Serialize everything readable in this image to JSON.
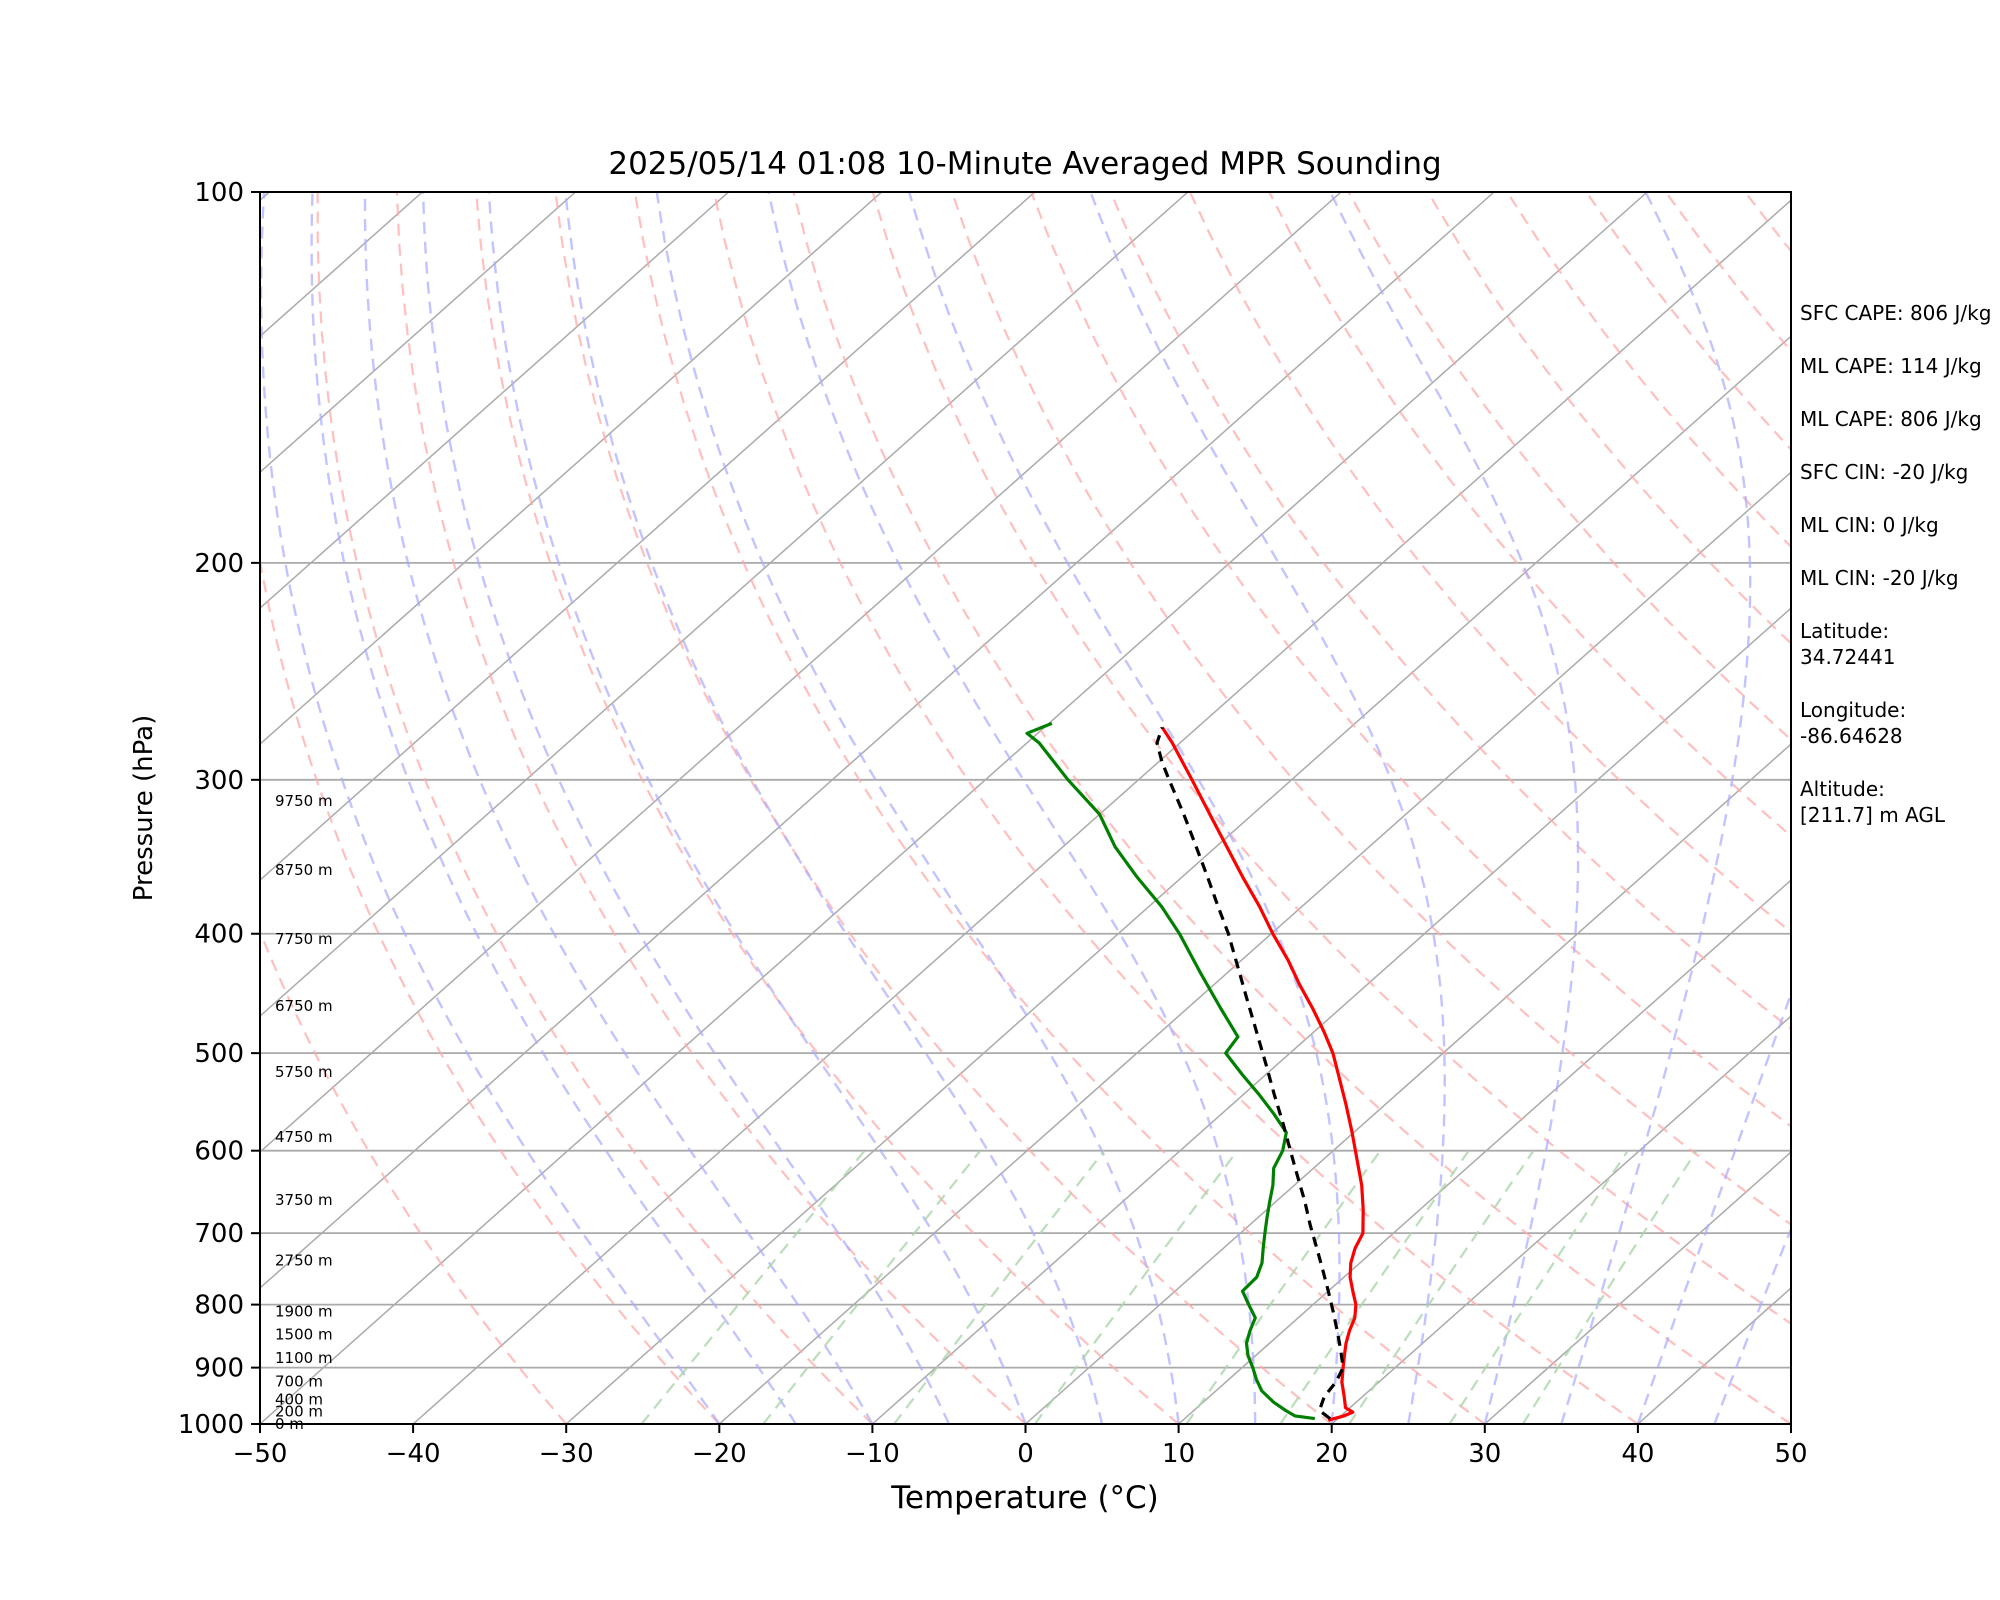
{
  "chart_data": {
    "type": "line",
    "title": "2025/05/14 01:08 10-Minute Averaged MPR Sounding",
    "xlabel": "Temperature (°C)",
    "ylabel": "Pressure (hPa)",
    "xlim": [
      -50,
      50
    ],
    "ylim": [
      1000,
      100
    ],
    "y_scale": "log",
    "skew": true,
    "x_ticks": [
      -50,
      -40,
      -30,
      -20,
      -10,
      0,
      10,
      20,
      30,
      40,
      50
    ],
    "x_tick_labels": [
      "−50",
      "−40",
      "−30",
      "−20",
      "−10",
      "0",
      "10",
      "20",
      "30",
      "40",
      "50"
    ],
    "y_ticks": [
      100,
      200,
      300,
      400,
      500,
      600,
      700,
      800,
      900,
      1000
    ],
    "y_tick_labels": [
      "100",
      "200",
      "300",
      "400",
      "500",
      "600",
      "700",
      "800",
      "900",
      "1000"
    ],
    "grid": true,
    "colors": {
      "temperature": "#ff0000",
      "dewpoint": "#008000",
      "parcel": "#000000",
      "isotherms": "#aaaaaa",
      "isobars": "#aaaaaa",
      "dry_adiabats": "#ffaaaa",
      "moist_adiabats": "#aaaaff",
      "mixing_ratio": "#aad4aa"
    },
    "series": [
      {
        "role": "temperature",
        "p": [
          993,
          985,
          978,
          970,
          950,
          925,
          900,
          880,
          860,
          840,
          820,
          800,
          780,
          760,
          740,
          720,
          700,
          670,
          640,
          610,
          580,
          550,
          520,
          500,
          480,
          460,
          440,
          420,
          400,
          380,
          360,
          340,
          320,
          300,
          280,
          272
        ],
        "t": [
          19.5,
          20.2,
          20.5,
          19.7,
          18.8,
          17.6,
          16.6,
          15.8,
          15.0,
          14.3,
          13.7,
          12.8,
          11.6,
          10.4,
          9.4,
          8.6,
          8.0,
          6.3,
          4.4,
          2.2,
          -0.1,
          -2.6,
          -5.3,
          -7.2,
          -9.4,
          -11.8,
          -14.4,
          -17.0,
          -19.9,
          -22.8,
          -26.0,
          -29.3,
          -32.8,
          -36.5,
          -40.5,
          -42.3
        ]
      },
      {
        "role": "dewpoint",
        "p": [
          990,
          985,
          975,
          960,
          940,
          920,
          900,
          880,
          860,
          840,
          820,
          800,
          780,
          760,
          740,
          720,
          700,
          680,
          660,
          640,
          620,
          600,
          580,
          560,
          540,
          520,
          500,
          485,
          460,
          430,
          400,
          380,
          360,
          340,
          320,
          300,
          280,
          275,
          270
        ],
        "t": [
          18.5,
          17.0,
          16.0,
          14.6,
          13.0,
          11.8,
          10.7,
          9.5,
          8.5,
          7.8,
          7.2,
          5.8,
          4.4,
          4.3,
          3.6,
          2.6,
          1.6,
          0.6,
          -0.4,
          -1.4,
          -2.6,
          -3.3,
          -4.4,
          -6.6,
          -9.0,
          -11.6,
          -14.2,
          -14.6,
          -17.8,
          -21.8,
          -26.0,
          -29.2,
          -32.9,
          -36.6,
          -40.0,
          -44.6,
          -49.2,
          -50.7,
          -49.8
        ]
      },
      {
        "role": "parcel",
        "p": [
          990,
          975,
          950,
          925,
          900,
          870,
          840,
          810,
          780,
          750,
          720,
          690,
          660,
          630,
          600,
          570,
          540,
          510,
          480,
          450,
          420,
          400,
          380,
          360,
          340,
          320,
          300,
          290,
          280,
          272
        ],
        "t": [
          19.5,
          18.2,
          17.5,
          17.2,
          16.6,
          15.1,
          13.5,
          11.8,
          10.0,
          8.1,
          6.1,
          4.0,
          1.9,
          -0.4,
          -2.8,
          -5.3,
          -8.0,
          -10.8,
          -13.8,
          -17.0,
          -20.4,
          -22.8,
          -25.5,
          -28.3,
          -31.3,
          -34.5,
          -38.0,
          -39.8,
          -41.5,
          -42.3
        ]
      }
    ],
    "height_labels": [
      {
        "label": "0 m",
        "p": 1000
      },
      {
        "label": "200 m",
        "p": 977
      },
      {
        "label": "400 m",
        "p": 955
      },
      {
        "label": "700 m",
        "p": 924
      },
      {
        "label": "1100 m",
        "p": 884
      },
      {
        "label": "1500 m",
        "p": 846
      },
      {
        "label": "1900 m",
        "p": 810
      },
      {
        "label": "2750 m",
        "p": 737
      },
      {
        "label": "3750 m",
        "p": 658
      },
      {
        "label": "4750 m",
        "p": 585
      },
      {
        "label": "5750 m",
        "p": 518
      },
      {
        "label": "6750 m",
        "p": 458
      },
      {
        "label": "7750 m",
        "p": 404
      },
      {
        "label": "8750 m",
        "p": 355
      },
      {
        "label": "9750 m",
        "p": 312
      }
    ]
  },
  "stats": {
    "sfc_cape": "SFC CAPE: 806 J/kg",
    "ml_cape_1": "ML CAPE: 114 J/kg",
    "ml_cape_2": "ML CAPE: 806 J/kg",
    "sfc_cin": "SFC CIN: -20 J/kg",
    "ml_cin_1": "ML CIN: 0 J/kg",
    "ml_cin_2": "ML CIN: -20 J/kg",
    "latitude_label": "Latitude:",
    "latitude_value": "34.72441",
    "longitude_label": "Longitude:",
    "longitude_value": "-86.64628",
    "altitude_label": "Altitude:",
    "altitude_value": "[211.7] m AGL"
  }
}
